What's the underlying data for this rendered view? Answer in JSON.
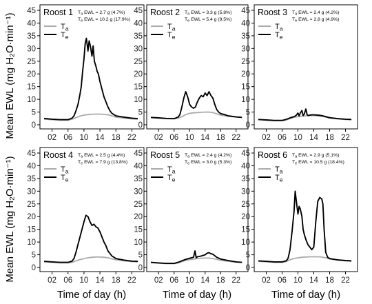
{
  "figure": {
    "ylabel": "Mean EWL (mg H₂O·min⁻¹)",
    "xlabel": "Time of day (h)"
  },
  "chart_data": [
    {
      "type": "line",
      "title": "Roost 1",
      "xlabel": "Time of day (h)",
      "ylabel": "Mean EWL (mg H₂O·min⁻¹)",
      "xlim": [
        0,
        24
      ],
      "ylim": [
        0,
        45
      ],
      "xticks": [
        "02",
        "06",
        "10",
        "14",
        "18",
        "22"
      ],
      "yticks": [
        "0",
        "5",
        "10",
        "15",
        "20",
        "25",
        "30",
        "35",
        "40",
        "45"
      ],
      "annotations": [
        "Ta EWL =   2.7 g (4.7%)",
        "Te EWL = 10.2 g (17.9%)"
      ],
      "series": [
        {
          "name": "Ta",
          "color": "#aaaaaa",
          "x": [
            0,
            2,
            4,
            6,
            7,
            8,
            9,
            10,
            11,
            12,
            13,
            14,
            15,
            16,
            17,
            18,
            20,
            22,
            23.5
          ],
          "values": [
            2.2,
            2.0,
            1.8,
            1.8,
            2.2,
            2.8,
            3.4,
            3.8,
            4.0,
            4.1,
            4.2,
            4.2,
            4.1,
            3.9,
            3.5,
            3.0,
            2.6,
            2.3,
            2.2
          ]
        },
        {
          "name": "Te",
          "color": "#000000",
          "x": [
            0,
            2,
            4,
            6,
            7,
            7.5,
            8,
            8.5,
            9,
            9.3,
            9.6,
            10,
            10.3,
            10.6,
            11,
            11.3,
            11.6,
            12,
            12.3,
            12.6,
            13,
            13.3,
            13.6,
            14,
            14.5,
            15,
            15.5,
            16,
            16.5,
            17,
            18,
            20,
            22,
            23.5
          ],
          "values": [
            2.5,
            2.2,
            2.0,
            2.0,
            2.6,
            3.5,
            5.5,
            8,
            12,
            15,
            20,
            26,
            32,
            34,
            29,
            33,
            31,
            27,
            31,
            25,
            23,
            21,
            20,
            17,
            14,
            11,
            9,
            7,
            5.5,
            4.5,
            3.5,
            3.0,
            2.6,
            2.4
          ]
        }
      ]
    },
    {
      "type": "line",
      "title": "Roost 2",
      "xlabel": "Time of day (h)",
      "ylabel": "Mean EWL (mg H₂O·min⁻¹)",
      "xlim": [
        0,
        24
      ],
      "ylim": [
        0,
        45
      ],
      "xticks": [
        "02",
        "06",
        "10",
        "14",
        "18",
        "22"
      ],
      "yticks": [
        "0",
        "5",
        "10",
        "15",
        "20",
        "25",
        "30",
        "35",
        "40",
        "45"
      ],
      "annotations": [
        "Ta EWL = 3.3 g (5.8%)",
        "Te EWL = 5.4 g (9.5%)"
      ],
      "series": [
        {
          "name": "Ta",
          "color": "#aaaaaa",
          "x": [
            0,
            2,
            4,
            6,
            7,
            8,
            9,
            10,
            11,
            12,
            13,
            14,
            15,
            16,
            17,
            18,
            20,
            22,
            23.5
          ],
          "values": [
            2.8,
            2.6,
            2.4,
            2.3,
            2.6,
            3.2,
            4.0,
            4.5,
            4.7,
            4.8,
            4.9,
            5.0,
            5.0,
            4.8,
            4.3,
            3.8,
            3.3,
            3.0,
            2.9
          ]
        },
        {
          "name": "Te",
          "color": "#000000",
          "x": [
            0,
            2,
            4,
            6,
            7,
            7.5,
            8,
            8.5,
            9,
            9.5,
            10,
            10.5,
            11,
            11.5,
            12,
            12.5,
            13,
            13.5,
            14,
            14.5,
            15,
            15.5,
            16,
            16.5,
            17,
            17.5,
            18,
            19,
            20,
            22,
            23.5
          ],
          "values": [
            2.9,
            2.7,
            2.5,
            2.4,
            3.0,
            4,
            7,
            10.5,
            13,
            11,
            8,
            7,
            6.5,
            7,
            9,
            10.5,
            11.5,
            11,
            12.5,
            11.5,
            13,
            11.5,
            10.5,
            8,
            6,
            5,
            4.4,
            4.0,
            3.5,
            3.1,
            2.9
          ]
        }
      ]
    },
    {
      "type": "line",
      "title": "Roost 3",
      "xlabel": "Time of day (h)",
      "ylabel": "Mean EWL (mg H₂O·min⁻¹)",
      "xlim": [
        0,
        24
      ],
      "ylim": [
        0,
        45
      ],
      "xticks": [
        "02",
        "06",
        "10",
        "14",
        "18",
        "22"
      ],
      "yticks": [
        "0",
        "5",
        "10",
        "15",
        "20",
        "25",
        "30",
        "35",
        "40",
        "45"
      ],
      "annotations": [
        "Ta EWL = 2.4 g (4.2%)",
        "Te EWL = 2.8 g (4.9%)"
      ],
      "series": [
        {
          "name": "Ta",
          "color": "#aaaaaa",
          "x": [
            0,
            2,
            4,
            6,
            7,
            8,
            9,
            10,
            11,
            12,
            13,
            14,
            15,
            16,
            17,
            18,
            20,
            22,
            23.5
          ],
          "values": [
            2.0,
            1.8,
            1.6,
            1.6,
            1.9,
            2.4,
            2.9,
            3.2,
            3.4,
            3.5,
            3.6,
            3.6,
            3.5,
            3.3,
            3.0,
            2.6,
            2.3,
            2.1,
            2.0
          ]
        },
        {
          "name": "Te",
          "color": "#000000",
          "x": [
            0,
            2,
            4,
            6,
            7,
            8,
            9,
            9.5,
            10,
            10.3,
            10.6,
            11,
            11.3,
            11.6,
            12,
            12.3,
            12.6,
            13,
            13.5,
            14,
            15,
            16,
            17,
            18,
            20,
            22,
            23.5
          ],
          "values": [
            2.1,
            1.9,
            1.7,
            1.7,
            2.1,
            2.7,
            3.2,
            3.6,
            4.6,
            3.5,
            4.6,
            5.6,
            3.6,
            4.2,
            6.2,
            4.0,
            3.6,
            3.8,
            3.9,
            3.9,
            3.8,
            3.6,
            3.2,
            2.8,
            2.4,
            2.2,
            2.1
          ]
        }
      ]
    },
    {
      "type": "line",
      "title": "Roost 4",
      "xlabel": "Time of day (h)",
      "ylabel": "Mean EWL (mg H₂O·min⁻¹)",
      "xlim": [
        0,
        24
      ],
      "ylim": [
        0,
        45
      ],
      "xticks": [
        "02",
        "06",
        "10",
        "14",
        "18",
        "22"
      ],
      "yticks": [
        "0",
        "5",
        "10",
        "15",
        "20",
        "25",
        "30",
        "35",
        "40",
        "45"
      ],
      "annotations": [
        "Ta EWL = 2.5 g (4.4%)",
        "Te EWL = 7.9 g (13.8%)"
      ],
      "series": [
        {
          "name": "Ta",
          "color": "#aaaaaa",
          "x": [
            0,
            2,
            4,
            6,
            7,
            8,
            9,
            10,
            11,
            12,
            13,
            14,
            15,
            16,
            17,
            18,
            20,
            22,
            23.5
          ],
          "values": [
            2.2,
            2.0,
            1.8,
            1.8,
            2.0,
            2.6,
            3.1,
            3.5,
            3.8,
            4.0,
            4.1,
            4.1,
            4.0,
            3.8,
            3.4,
            3.0,
            2.6,
            2.3,
            2.2
          ]
        },
        {
          "name": "Te",
          "color": "#000000",
          "x": [
            0,
            2,
            4,
            6,
            7,
            7.5,
            8,
            8.5,
            9,
            9.5,
            10,
            10.5,
            11,
            11.5,
            12,
            12.5,
            13,
            13.5,
            14,
            14.5,
            15,
            15.5,
            16,
            16.5,
            17,
            17.5,
            18,
            20,
            22,
            23.5
          ],
          "values": [
            2.4,
            2.2,
            2.0,
            2.0,
            2.5,
            3.5,
            6,
            9,
            12,
            15,
            18,
            20.5,
            20,
            18,
            16.5,
            17,
            16,
            15.5,
            14,
            12,
            10,
            8.5,
            6.5,
            5.5,
            4.5,
            4,
            3.5,
            2.9,
            2.5,
            2.4
          ]
        }
      ]
    },
    {
      "type": "line",
      "title": "Roost 5",
      "xlabel": "Time of day (h)",
      "ylabel": "Mean EWL (mg H₂O·min⁻¹)",
      "xlim": [
        0,
        24
      ],
      "ylim": [
        0,
        45
      ],
      "xticks": [
        "02",
        "06",
        "10",
        "14",
        "18",
        "22"
      ],
      "yticks": [
        "0",
        "5",
        "10",
        "15",
        "20",
        "25",
        "30",
        "35",
        "40",
        "45"
      ],
      "annotations": [
        "Ta EWL = 2.4 g (4.2%)",
        "Te EWL = 3.0 g (5.3%)"
      ],
      "series": [
        {
          "name": "Ta",
          "color": "#aaaaaa",
          "x": [
            0,
            2,
            4,
            6,
            7,
            8,
            9,
            10,
            11,
            12,
            13,
            14,
            15,
            16,
            17,
            18,
            20,
            22,
            23.5
          ],
          "values": [
            1.9,
            1.7,
            1.5,
            1.5,
            1.8,
            2.3,
            2.8,
            3.1,
            3.3,
            3.5,
            3.6,
            3.7,
            3.7,
            3.5,
            3.2,
            2.8,
            2.4,
            2.1,
            2.0
          ]
        },
        {
          "name": "Te",
          "color": "#000000",
          "x": [
            0,
            2,
            4,
            6,
            7,
            8,
            9,
            10,
            11,
            11.4,
            11.7,
            12,
            13,
            14,
            14.5,
            15,
            15.5,
            16,
            16.5,
            17,
            18,
            20,
            22,
            23.5
          ],
          "values": [
            2.0,
            1.8,
            1.6,
            1.6,
            2.0,
            2.6,
            3.2,
            3.6,
            4.0,
            6.5,
            3.8,
            4.2,
            4.5,
            5.0,
            5.6,
            5.8,
            5.4,
            5.2,
            4.6,
            4.0,
            3.3,
            2.7,
            2.2,
            2.0
          ]
        }
      ]
    },
    {
      "type": "line",
      "title": "Roost 6",
      "xlabel": "Time of day (h)",
      "ylabel": "Mean EWL (mg H₂O·min⁻¹)",
      "xlim": [
        0,
        24
      ],
      "ylim": [
        0,
        45
      ],
      "xticks": [
        "02",
        "06",
        "10",
        "14",
        "18",
        "22"
      ],
      "yticks": [
        "0",
        "5",
        "10",
        "15",
        "20",
        "25",
        "30",
        "35",
        "40",
        "45"
      ],
      "annotations": [
        "Ta EWL =   2.9 g (5.1%)",
        "Te EWL = 10.5 g (18.4%)"
      ],
      "series": [
        {
          "name": "Ta",
          "color": "#aaaaaa",
          "x": [
            0,
            2,
            4,
            6,
            7,
            8,
            9,
            10,
            11,
            12,
            13,
            14,
            15,
            16,
            17,
            18,
            20,
            22,
            23.5
          ],
          "values": [
            2.4,
            2.2,
            2.0,
            2.0,
            2.3,
            3.0,
            3.5,
            3.8,
            4.0,
            4.1,
            4.2,
            4.2,
            4.2,
            4.1,
            3.8,
            3.3,
            2.9,
            2.6,
            2.4
          ]
        },
        {
          "name": "Te",
          "color": "#000000",
          "x": [
            0,
            2,
            4,
            6,
            7,
            7.5,
            8,
            8.5,
            9,
            9.3,
            9.6,
            10,
            10.3,
            10.6,
            11,
            11.3,
            11.6,
            12,
            12.5,
            13,
            13.5,
            14,
            14.5,
            15,
            15.5,
            16,
            16.3,
            16.6,
            17,
            17.5,
            18,
            20,
            22,
            23.5
          ],
          "values": [
            2.6,
            2.4,
            2.2,
            2.2,
            2.6,
            3.5,
            7,
            14,
            22,
            30,
            26,
            21,
            24,
            23,
            20,
            15,
            13,
            11,
            9,
            8,
            7,
            8,
            18,
            26,
            27.5,
            27,
            25,
            15,
            6,
            4,
            3.5,
            3,
            2.7,
            2.6
          ]
        }
      ]
    }
  ]
}
